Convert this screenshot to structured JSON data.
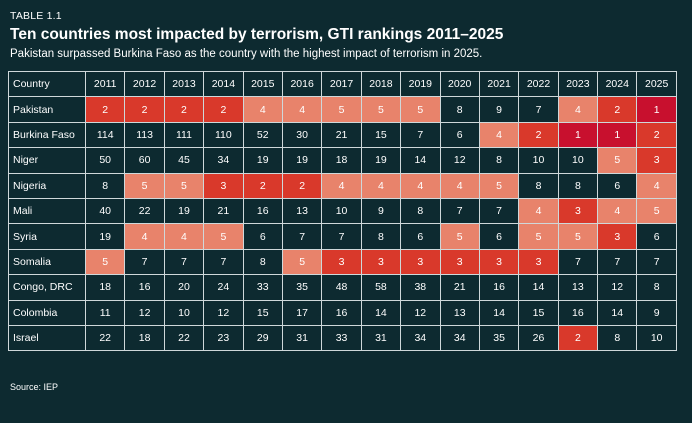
{
  "header": {
    "table_label": "TABLE 1.1",
    "title": "Ten countries most impacted by terrorism, GTI rankings 2011–2025",
    "subtitle": "Pakistan surpassed Burkina Faso as the country with the highest impact of terrorism in 2025."
  },
  "footer": {
    "source": "Source: IEP"
  },
  "colors": {
    "background": "#0d2a30",
    "rank_1": "#c8102e",
    "rank_2_3": "#d9392b",
    "rank_4_5": "#e8836b",
    "text": "#ffffff"
  },
  "chart_data": {
    "type": "table",
    "columns": [
      "Country",
      "2011",
      "2012",
      "2013",
      "2014",
      "2015",
      "2016",
      "2017",
      "2018",
      "2019",
      "2020",
      "2021",
      "2022",
      "2023",
      "2024",
      "2025"
    ],
    "rows": [
      {
        "country": "Pakistan",
        "ranks": [
          2,
          2,
          2,
          2,
          4,
          4,
          5,
          5,
          5,
          8,
          9,
          7,
          4,
          2,
          1
        ]
      },
      {
        "country": "Burkina Faso",
        "ranks": [
          114,
          113,
          111,
          110,
          52,
          30,
          21,
          15,
          7,
          6,
          4,
          2,
          1,
          1,
          2
        ]
      },
      {
        "country": "Niger",
        "ranks": [
          50,
          60,
          45,
          34,
          19,
          19,
          18,
          19,
          14,
          12,
          8,
          10,
          10,
          5,
          3
        ]
      },
      {
        "country": "Nigeria",
        "ranks": [
          8,
          5,
          5,
          3,
          2,
          2,
          4,
          4,
          4,
          4,
          5,
          8,
          8,
          6,
          4
        ]
      },
      {
        "country": "Mali",
        "ranks": [
          40,
          22,
          19,
          21,
          16,
          13,
          10,
          9,
          8,
          7,
          7,
          4,
          3,
          4,
          5
        ]
      },
      {
        "country": "Syria",
        "ranks": [
          19,
          4,
          4,
          5,
          6,
          7,
          7,
          8,
          6,
          5,
          6,
          5,
          5,
          3,
          6
        ]
      },
      {
        "country": "Somalia",
        "ranks": [
          5,
          7,
          7,
          7,
          8,
          5,
          3,
          3,
          3,
          3,
          3,
          3,
          7,
          7,
          7
        ]
      },
      {
        "country": "Congo, DRC",
        "ranks": [
          18,
          16,
          20,
          24,
          33,
          35,
          48,
          58,
          38,
          21,
          16,
          14,
          13,
          12,
          8
        ]
      },
      {
        "country": "Colombia",
        "ranks": [
          11,
          12,
          10,
          12,
          15,
          17,
          16,
          14,
          12,
          13,
          14,
          15,
          16,
          14,
          9
        ]
      },
      {
        "country": "Israel",
        "ranks": [
          22,
          18,
          22,
          23,
          29,
          31,
          33,
          31,
          34,
          34,
          35,
          26,
          2,
          8,
          10
        ]
      }
    ]
  }
}
